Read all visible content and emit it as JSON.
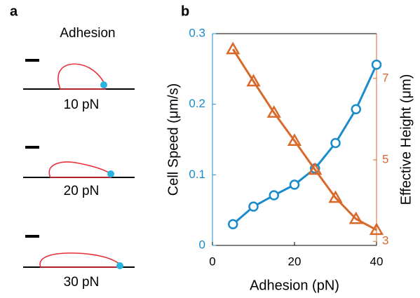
{
  "panel_labels": [
    "a",
    "b"
  ],
  "diagram": {
    "title": "Adhesion",
    "labels": [
      "10 pN",
      "20 pN",
      "30 pN"
    ]
  },
  "chart_data": {
    "type": "line",
    "x_label": "Adhesion (pN)",
    "y_label": "Cell Speed (μm/s)",
    "y2_label": "Effective Height (μm)",
    "x": [
      5,
      10,
      15,
      20,
      25,
      30,
      35,
      40
    ],
    "series": [
      {
        "name": "Cell Speed",
        "color": "#1a8ccc",
        "marker": "circle",
        "values": [
          0.03,
          0.055,
          0.071,
          0.086,
          0.109,
          0.145,
          0.193,
          0.256
        ]
      },
      {
        "name": "Effective Height",
        "color": "#d9692a",
        "marker": "triangle",
        "axis": "y2",
        "values": [
          7.72,
          6.93,
          6.16,
          5.47,
          4.76,
          4.07,
          3.55,
          3.28
        ]
      }
    ],
    "xlim": [
      0,
      40
    ],
    "xticks": [
      0,
      20,
      40
    ],
    "ylim": [
      0,
      0.3
    ],
    "yticks": [
      0,
      0.1,
      0.2,
      0.3
    ],
    "y2lim": [
      2.9,
      8.1
    ],
    "y2ticks": [
      3,
      5,
      7
    ],
    "grid": false
  }
}
